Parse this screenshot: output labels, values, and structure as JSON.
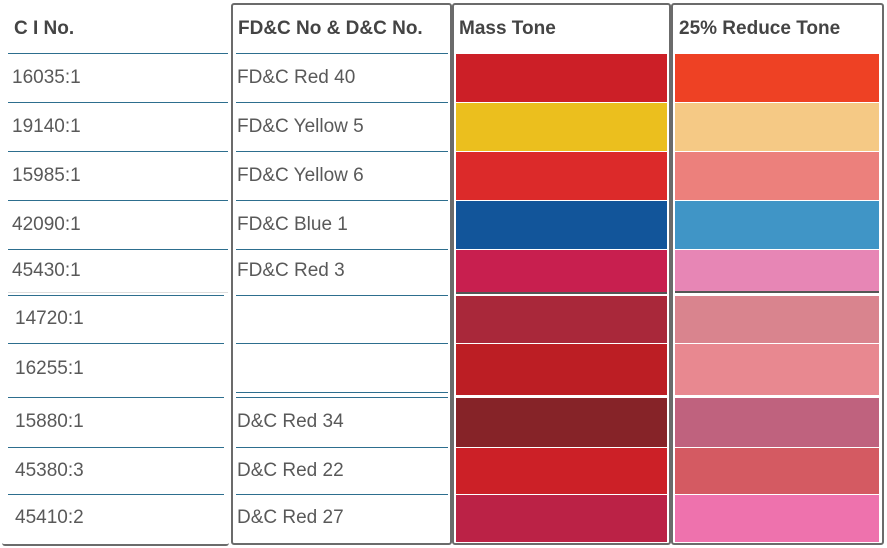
{
  "headers": {
    "ci": "C I No.",
    "fdc": "FD&C No & D&C No.",
    "mass": "Mass Tone",
    "reduce": "25% Reduce Tone"
  },
  "rows": [
    {
      "ci": "16035:1",
      "fdc": "FD&C Red 40",
      "mass": "#cc1f27",
      "reduce": "#ee4124"
    },
    {
      "ci": "19140:1",
      "fdc": "FD&C Yellow 5",
      "mass": "#ebbf1e",
      "reduce": "#f5c985"
    },
    {
      "ci": "15985:1",
      "fdc": "FD&C Yellow 6",
      "mass": "#dc2a2a",
      "reduce": "#ec807c"
    },
    {
      "ci": "42090:1",
      "fdc": "FD&C Blue 1",
      "mass": "#12559a",
      "reduce": "#4095c6"
    },
    {
      "ci": "45430:1",
      "fdc": "FD&C Red 3",
      "mass": "#c81f4f",
      "reduce": "#e786b5"
    },
    {
      "ci": "14720:1",
      "fdc": "",
      "mass": "#a9283a",
      "reduce": "#d9848e"
    },
    {
      "ci": "16255:1",
      "fdc": "",
      "mass": "#bc1e24",
      "reduce": "#e88890"
    },
    {
      "ci": "15880:1",
      "fdc": "D&C Red 34",
      "mass": "#862328",
      "reduce": "#bf627e"
    },
    {
      "ci": "45380:3",
      "fdc": "D&C Red 22",
      "mass": "#cc2027",
      "reduce": "#d45a62"
    },
    {
      "ci": "45410:2",
      "fdc": "D&C Red 27",
      "mass": "#bb2246",
      "reduce": "#ee72ad"
    }
  ]
}
